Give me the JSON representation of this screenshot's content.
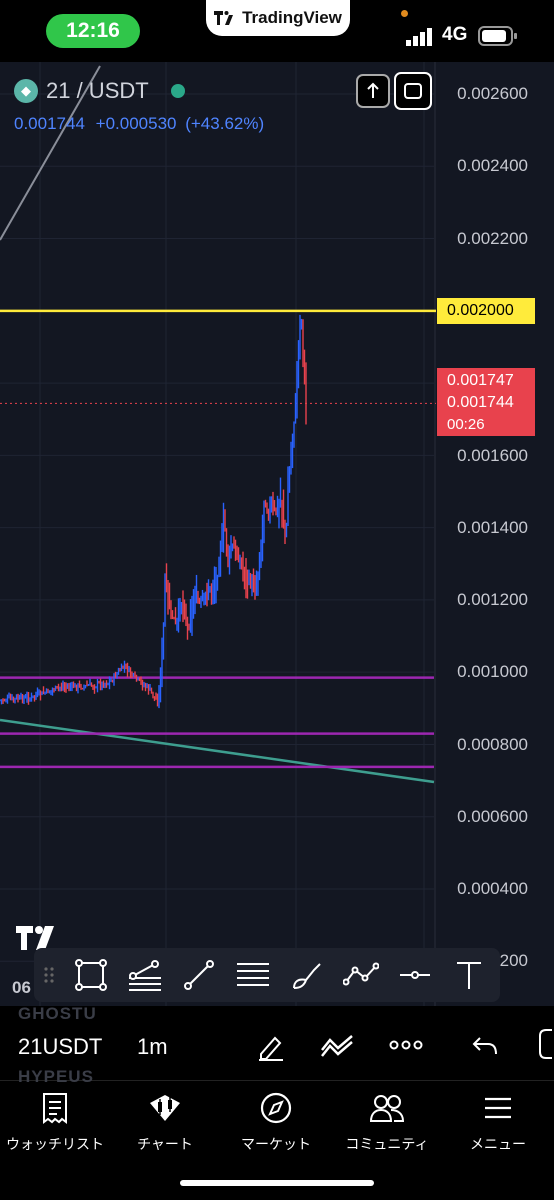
{
  "status_bar": {
    "time": "12:16",
    "app_brand": "TradingView",
    "network": "4G"
  },
  "symbol": {
    "name": "21 / USDT",
    "last": "0.001744",
    "change": "+0.000530",
    "change_pct": "(+43.62%)"
  },
  "price_axis": [
    "0.002600",
    "0.002400",
    "0.002200",
    "0.001600",
    "0.001400",
    "0.001200",
    "0.001000",
    "0.000800",
    "0.000600",
    "0.000400",
    "200"
  ],
  "tags": {
    "yellow_level": "0.002000",
    "red_high": "0.001747",
    "red_last": "0.001744",
    "countdown": "00:26"
  },
  "levels": {
    "yellow": 0.002,
    "purple": [
      0.000985,
      0.00083,
      0.000738
    ]
  },
  "colors": {
    "up": "#2962ff",
    "down": "#e8424d",
    "yellow_line": "#ffeb3b",
    "purple_line": "#9c27b0",
    "teal_line": "#3e9e8f",
    "background": "#131722"
  },
  "time_axis_partial": "06",
  "ghost_symbols": [
    "GHOSTU",
    "HYPEUS"
  ],
  "drawing_tools": [
    "rectangle-icon",
    "fib-retracement-icon",
    "trend-line-icon",
    "horizontal-lines-icon",
    "brush-icon",
    "path-icon",
    "horizontal-ray-icon",
    "text-icon"
  ],
  "symbol_toolbar": {
    "symbol": "21USDT",
    "interval": "1m"
  },
  "bottom_nav": [
    {
      "label": "ウォッチリスト",
      "icon": "watchlist-icon"
    },
    {
      "label": "チャート",
      "icon": "chart-icon"
    },
    {
      "label": "マーケット",
      "icon": "compass-icon"
    },
    {
      "label": "コミュニティ",
      "icon": "community-icon"
    },
    {
      "label": "メニュー",
      "icon": "menu-icon"
    }
  ]
}
